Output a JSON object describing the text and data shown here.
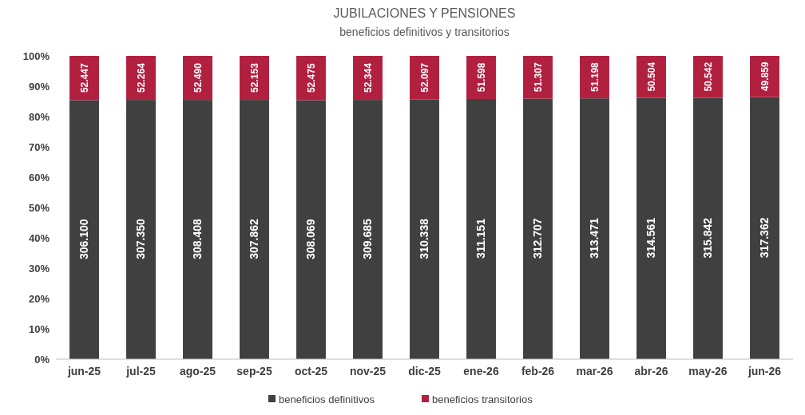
{
  "chart_data": {
    "type": "bar",
    "title": "JUBILACIONES Y PENSIONES",
    "subtitle": "beneficios definitivos y transitorios",
    "stacked": true,
    "categories": [
      "jun-25",
      "jul-25",
      "ago-25",
      "sep-25",
      "oct-25",
      "nov-25",
      "dic-25",
      "ene-26",
      "feb-26",
      "mar-26",
      "abr-26",
      "may-26",
      "jun-26"
    ],
    "series": [
      {
        "name": "beneficios definitivos",
        "color": "#404040",
        "values": [
          85.4,
          85.5,
          85.5,
          85.5,
          85.4,
          85.5,
          85.6,
          85.8,
          85.9,
          86.0,
          86.2,
          86.2,
          86.4
        ]
      },
      {
        "name": "beneficios transitorios",
        "color": "#b22040",
        "values": [
          14.6,
          14.5,
          14.5,
          14.5,
          14.6,
          14.5,
          14.4,
          14.2,
          14.1,
          14.0,
          13.8,
          13.8,
          13.6
        ]
      }
    ],
    "annotations": [
      "306.100",
      "307.350",
      "308.408",
      "307.862",
      "308.069",
      "309.685",
      "310.338",
      "311.151",
      "312.707",
      "313.471",
      "314.561",
      "315.842",
      "317.362",
      "52.447",
      "52.264",
      "52.490",
      "52.153",
      "52.475",
      "52.344",
      "52.097",
      "51.598",
      "51.307",
      "51.198",
      "50.504",
      "50.542",
      "49.859"
    ],
    "ylim": [
      0,
      100
    ],
    "yticks": [
      {
        "value": 0,
        "label": "0%"
      },
      {
        "value": 10,
        "label": "10%"
      },
      {
        "value": 20,
        "label": "20%"
      },
      {
        "value": 30,
        "label": "30%"
      },
      {
        "value": 40,
        "label": "40%"
      },
      {
        "value": 50,
        "label": "50%"
      },
      {
        "value": 60,
        "label": "60%"
      },
      {
        "value": 70,
        "label": "70%"
      },
      {
        "value": 80,
        "label": "80%"
      },
      {
        "value": 90,
        "label": "90%"
      },
      {
        "value": 100,
        "label": "100%"
      }
    ],
    "legend": "bottom"
  }
}
